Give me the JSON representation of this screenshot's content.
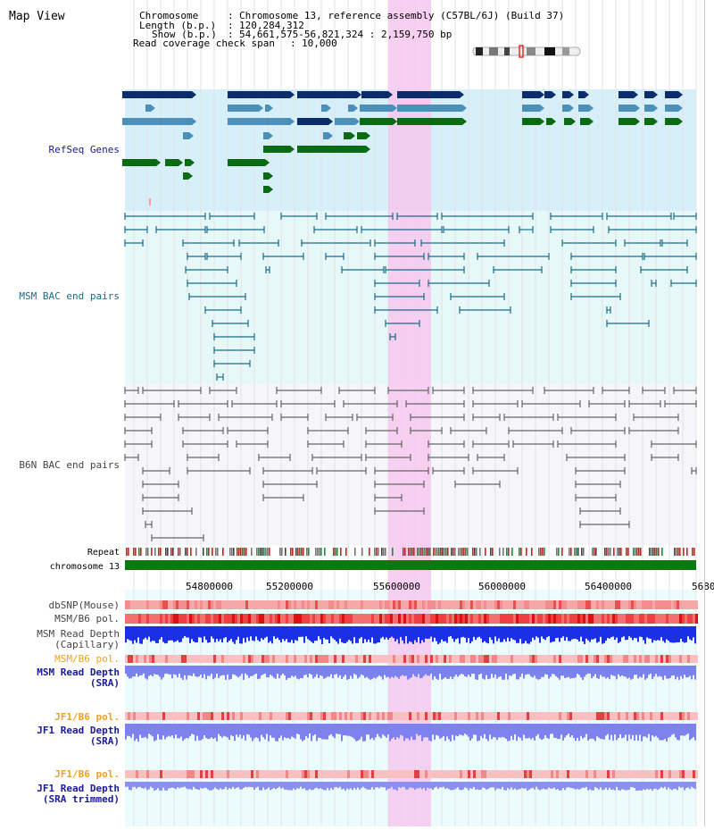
{
  "page": {
    "title": "Map View"
  },
  "info": {
    "chromosome_key": "Chromosome",
    "chromosome_value": "Chromosome 13, reference assembly (C57BL/6J) (Build 37)",
    "length_key": "Length (b.p.)",
    "length_value": "120,284,312",
    "show_key": "Show (b.p.)",
    "show_value": "54,661,575-56,821,324 : 2,159,750 bp",
    "coverage_key": "Read coverage check span",
    "coverage_value": "10,000"
  },
  "tracks": {
    "refseq": "RefSeq Genes",
    "msm_bac": "MSM BAC end pairs",
    "b6n_bac": "B6N BAC end pairs",
    "repeat": "Repeat",
    "chromosome": "chromosome 13",
    "dbsnp": "dbSNP(Mouse)",
    "msm_b6_pol": "MSM/B6 pol.",
    "msm_depth_cap_1": "MSM Read Depth",
    "msm_depth_cap_2": "(Capillary)",
    "msm_b6_pol_2": "MSM/B6 pol.",
    "msm_depth_sra_1": "MSM Read Depth",
    "msm_depth_sra_2": "(SRA)",
    "jf1_b6_pol": "JF1/B6 pol.",
    "jf1_depth_sra_1": "JF1 Read Depth",
    "jf1_depth_sra_2": "(SRA)",
    "jf1_b6_pol_2": "JF1/B6 pol.",
    "jf1_depth_trim_1": "JF1 Read Depth",
    "jf1_depth_trim_2": "(SRA trimmed)"
  },
  "axis": {
    "ticks": [
      "54800000",
      "55200000",
      "55600000",
      "56000000",
      "56400000",
      "5680"
    ]
  },
  "colors": {
    "refseq_dark": "#0b2d6b",
    "refseq_mid": "#4a90b8",
    "refseq_green": "#0b6b12",
    "msm_line": "#1a6b8a",
    "b6n_line": "#666666",
    "highlight": "#f6c8ef",
    "chrom_bar": "#0a7a10",
    "msm_label": "#1a6b8a",
    "navy_label": "#1a1a9a",
    "orange_label": "#f0a020"
  }
}
